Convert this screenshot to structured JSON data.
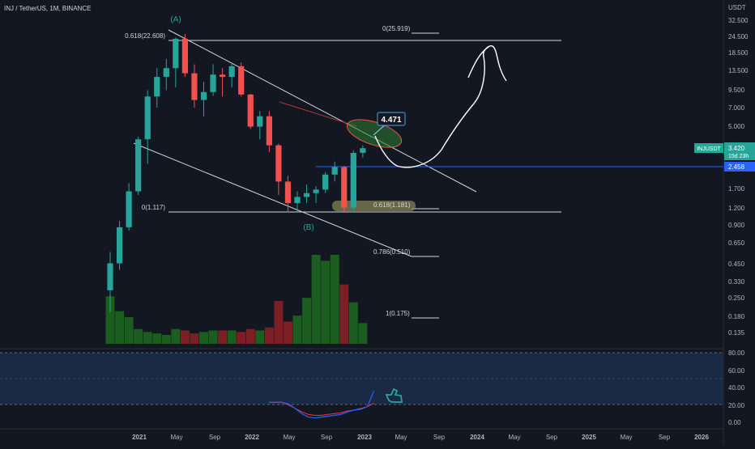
{
  "header": {
    "symbol_line": "INJ / TetherUS, 1M, BINANCE"
  },
  "colors": {
    "background": "#131722",
    "up": "#26a69a",
    "down": "#ef5350",
    "text": "#b2b5be",
    "axis_line": "#2a2e39",
    "fib_line": "#d1d4dc",
    "blue_line": "#2962ff",
    "rsi_band": "#1a2a44",
    "rsi_line": "#2962ff",
    "rsi_ma": "#f23645",
    "green_text": "#26a69a",
    "vol_up": "#1b5e20",
    "vol_down": "#7b1f24",
    "white_draw": "#ffffff",
    "olive": "#8a8a5a"
  },
  "axis": {
    "unit_label": "USDT",
    "price_ticks": [
      "32.500",
      "24.500",
      "18.500",
      "13.500",
      "9.500",
      "7.000",
      "5.000",
      "3.420",
      "2.458",
      "1.700",
      "1.200",
      "0.900",
      "0.650",
      "0.450",
      "0.330",
      "0.250",
      "0.180",
      "0.135"
    ],
    "rsi_ticks": [
      "80.00",
      "60.00",
      "40.00",
      "20.00",
      "0.00"
    ],
    "time_ticks": [
      "2021",
      "May",
      "Sep",
      "2022",
      "May",
      "Sep",
      "2023",
      "May",
      "Sep",
      "2024",
      "May",
      "Sep",
      "2025",
      "May",
      "Sep",
      "2026"
    ]
  },
  "price_labels": {
    "current_ticker": "INJUSDT",
    "current_price": "3.420",
    "countdown": "15d 23h",
    "level_price": "2.458"
  },
  "annotations": {
    "wave_a": "(A)",
    "wave_b": "(B)",
    "callout": "4.471",
    "fib_0618_top": "0.618(22.608)",
    "fib_0_top": "0(25.919)",
    "fib_0_bottom": "0(1.117)",
    "fib_0618_bottom": "0.618(1.181)",
    "fib_0786": "0.786(0.510)",
    "fib_1": "1(0.175)"
  },
  "chart_data": {
    "type": "candlestick",
    "title": "INJ / TetherUS, 1M, BINANCE",
    "y_scale": "log",
    "ylim": [
      0.12,
      40
    ],
    "months": [
      "2020-11",
      "2020-12",
      "2021-01",
      "2021-02",
      "2021-03",
      "2021-04",
      "2021-05",
      "2021-06",
      "2021-07",
      "2021-08",
      "2021-09",
      "2021-10",
      "2021-11",
      "2021-12",
      "2022-01",
      "2022-02",
      "2022-03",
      "2022-04",
      "2022-05",
      "2022-06",
      "2022-07",
      "2022-08",
      "2022-09",
      "2022-10",
      "2022-11",
      "2022-12",
      "2023-01",
      "2023-02"
    ],
    "ohlc": [
      [
        0.28,
        0.55,
        0.19,
        0.45
      ],
      [
        0.45,
        0.95,
        0.4,
        0.85
      ],
      [
        0.85,
        1.85,
        0.8,
        1.6
      ],
      [
        1.6,
        4.2,
        1.5,
        4.0
      ],
      [
        4.0,
        9.5,
        2.6,
        8.5
      ],
      [
        8.5,
        14.0,
        7.0,
        12.0
      ],
      [
        12.0,
        16.5,
        9.5,
        14.0
      ],
      [
        14.0,
        24.0,
        10.0,
        23.5
      ],
      [
        23.5,
        25.5,
        12.0,
        12.8
      ],
      [
        12.8,
        15.0,
        7.0,
        8.0
      ],
      [
        8.0,
        11.0,
        6.0,
        9.2
      ],
      [
        9.2,
        15.0,
        8.6,
        12.5
      ],
      [
        12.5,
        14.0,
        8.5,
        12.0
      ],
      [
        12.0,
        15.5,
        10.0,
        14.5
      ],
      [
        14.5,
        15.5,
        8.5,
        8.8
      ],
      [
        8.8,
        8.9,
        4.8,
        5.0
      ],
      [
        5.0,
        6.6,
        4.0,
        6.0
      ],
      [
        6.0,
        6.6,
        3.2,
        3.6
      ],
      [
        3.6,
        3.7,
        1.5,
        1.9
      ],
      [
        1.9,
        2.1,
        1.1,
        1.3
      ],
      [
        1.3,
        1.6,
        1.1,
        1.45
      ],
      [
        1.45,
        1.8,
        1.3,
        1.55
      ],
      [
        1.55,
        1.75,
        1.3,
        1.65
      ],
      [
        1.65,
        2.25,
        1.55,
        2.15
      ],
      [
        2.15,
        2.7,
        1.9,
        2.45
      ],
      [
        2.45,
        2.5,
        1.1,
        1.2
      ],
      [
        1.2,
        3.3,
        1.15,
        3.15
      ],
      [
        3.15,
        3.6,
        2.9,
        3.42
      ]
    ],
    "volume_relative": [
      0.32,
      0.22,
      0.18,
      0.1,
      0.08,
      0.07,
      0.06,
      0.1,
      0.09,
      0.07,
      0.08,
      0.09,
      0.09,
      0.09,
      0.08,
      0.1,
      0.09,
      0.11,
      0.29,
      0.15,
      0.19,
      0.31,
      0.6,
      0.56,
      0.6,
      0.4,
      0.28,
      0.14
    ],
    "rsi": {
      "range": [
        0,
        90
      ],
      "levels": [
        80,
        60,
        40,
        20
      ],
      "line": [
        23,
        23,
        23,
        21,
        16,
        10,
        6,
        5,
        6,
        7,
        8,
        9,
        12,
        14,
        15,
        18,
        36
      ],
      "ma": [
        23,
        23,
        23,
        20,
        16,
        12,
        9,
        8,
        8,
        9,
        10,
        11,
        13,
        14,
        16,
        18,
        22
      ]
    }
  }
}
